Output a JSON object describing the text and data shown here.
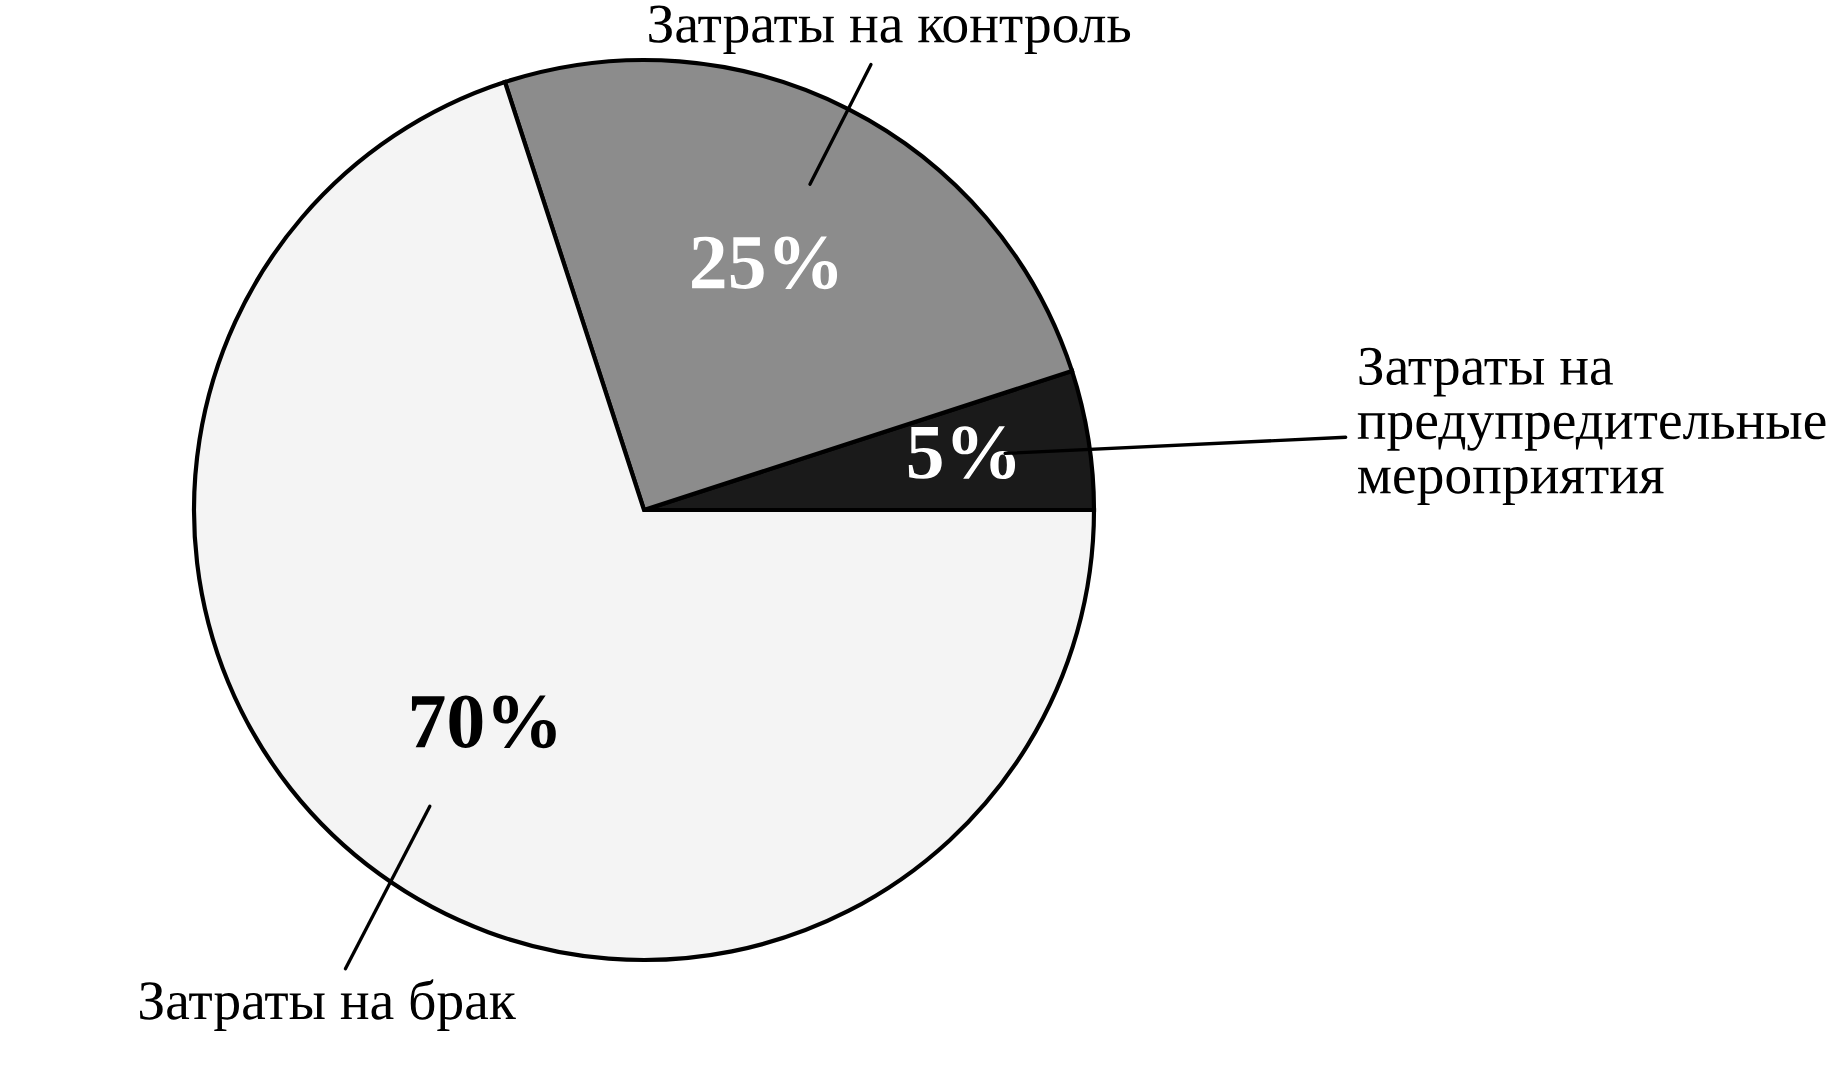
{
  "chart_data": {
    "type": "pie",
    "categories": [
      "Затраты на\nпредупредительные\nмероприятия",
      "Затраты на контроль",
      "Затраты на брак"
    ],
    "values": [
      5,
      25,
      70
    ],
    "colors": [
      "#1a1a1a",
      "#8c8c8c",
      "#f4f4f4"
    ],
    "value_labels": [
      "5%",
      "25%",
      "70%"
    ]
  }
}
